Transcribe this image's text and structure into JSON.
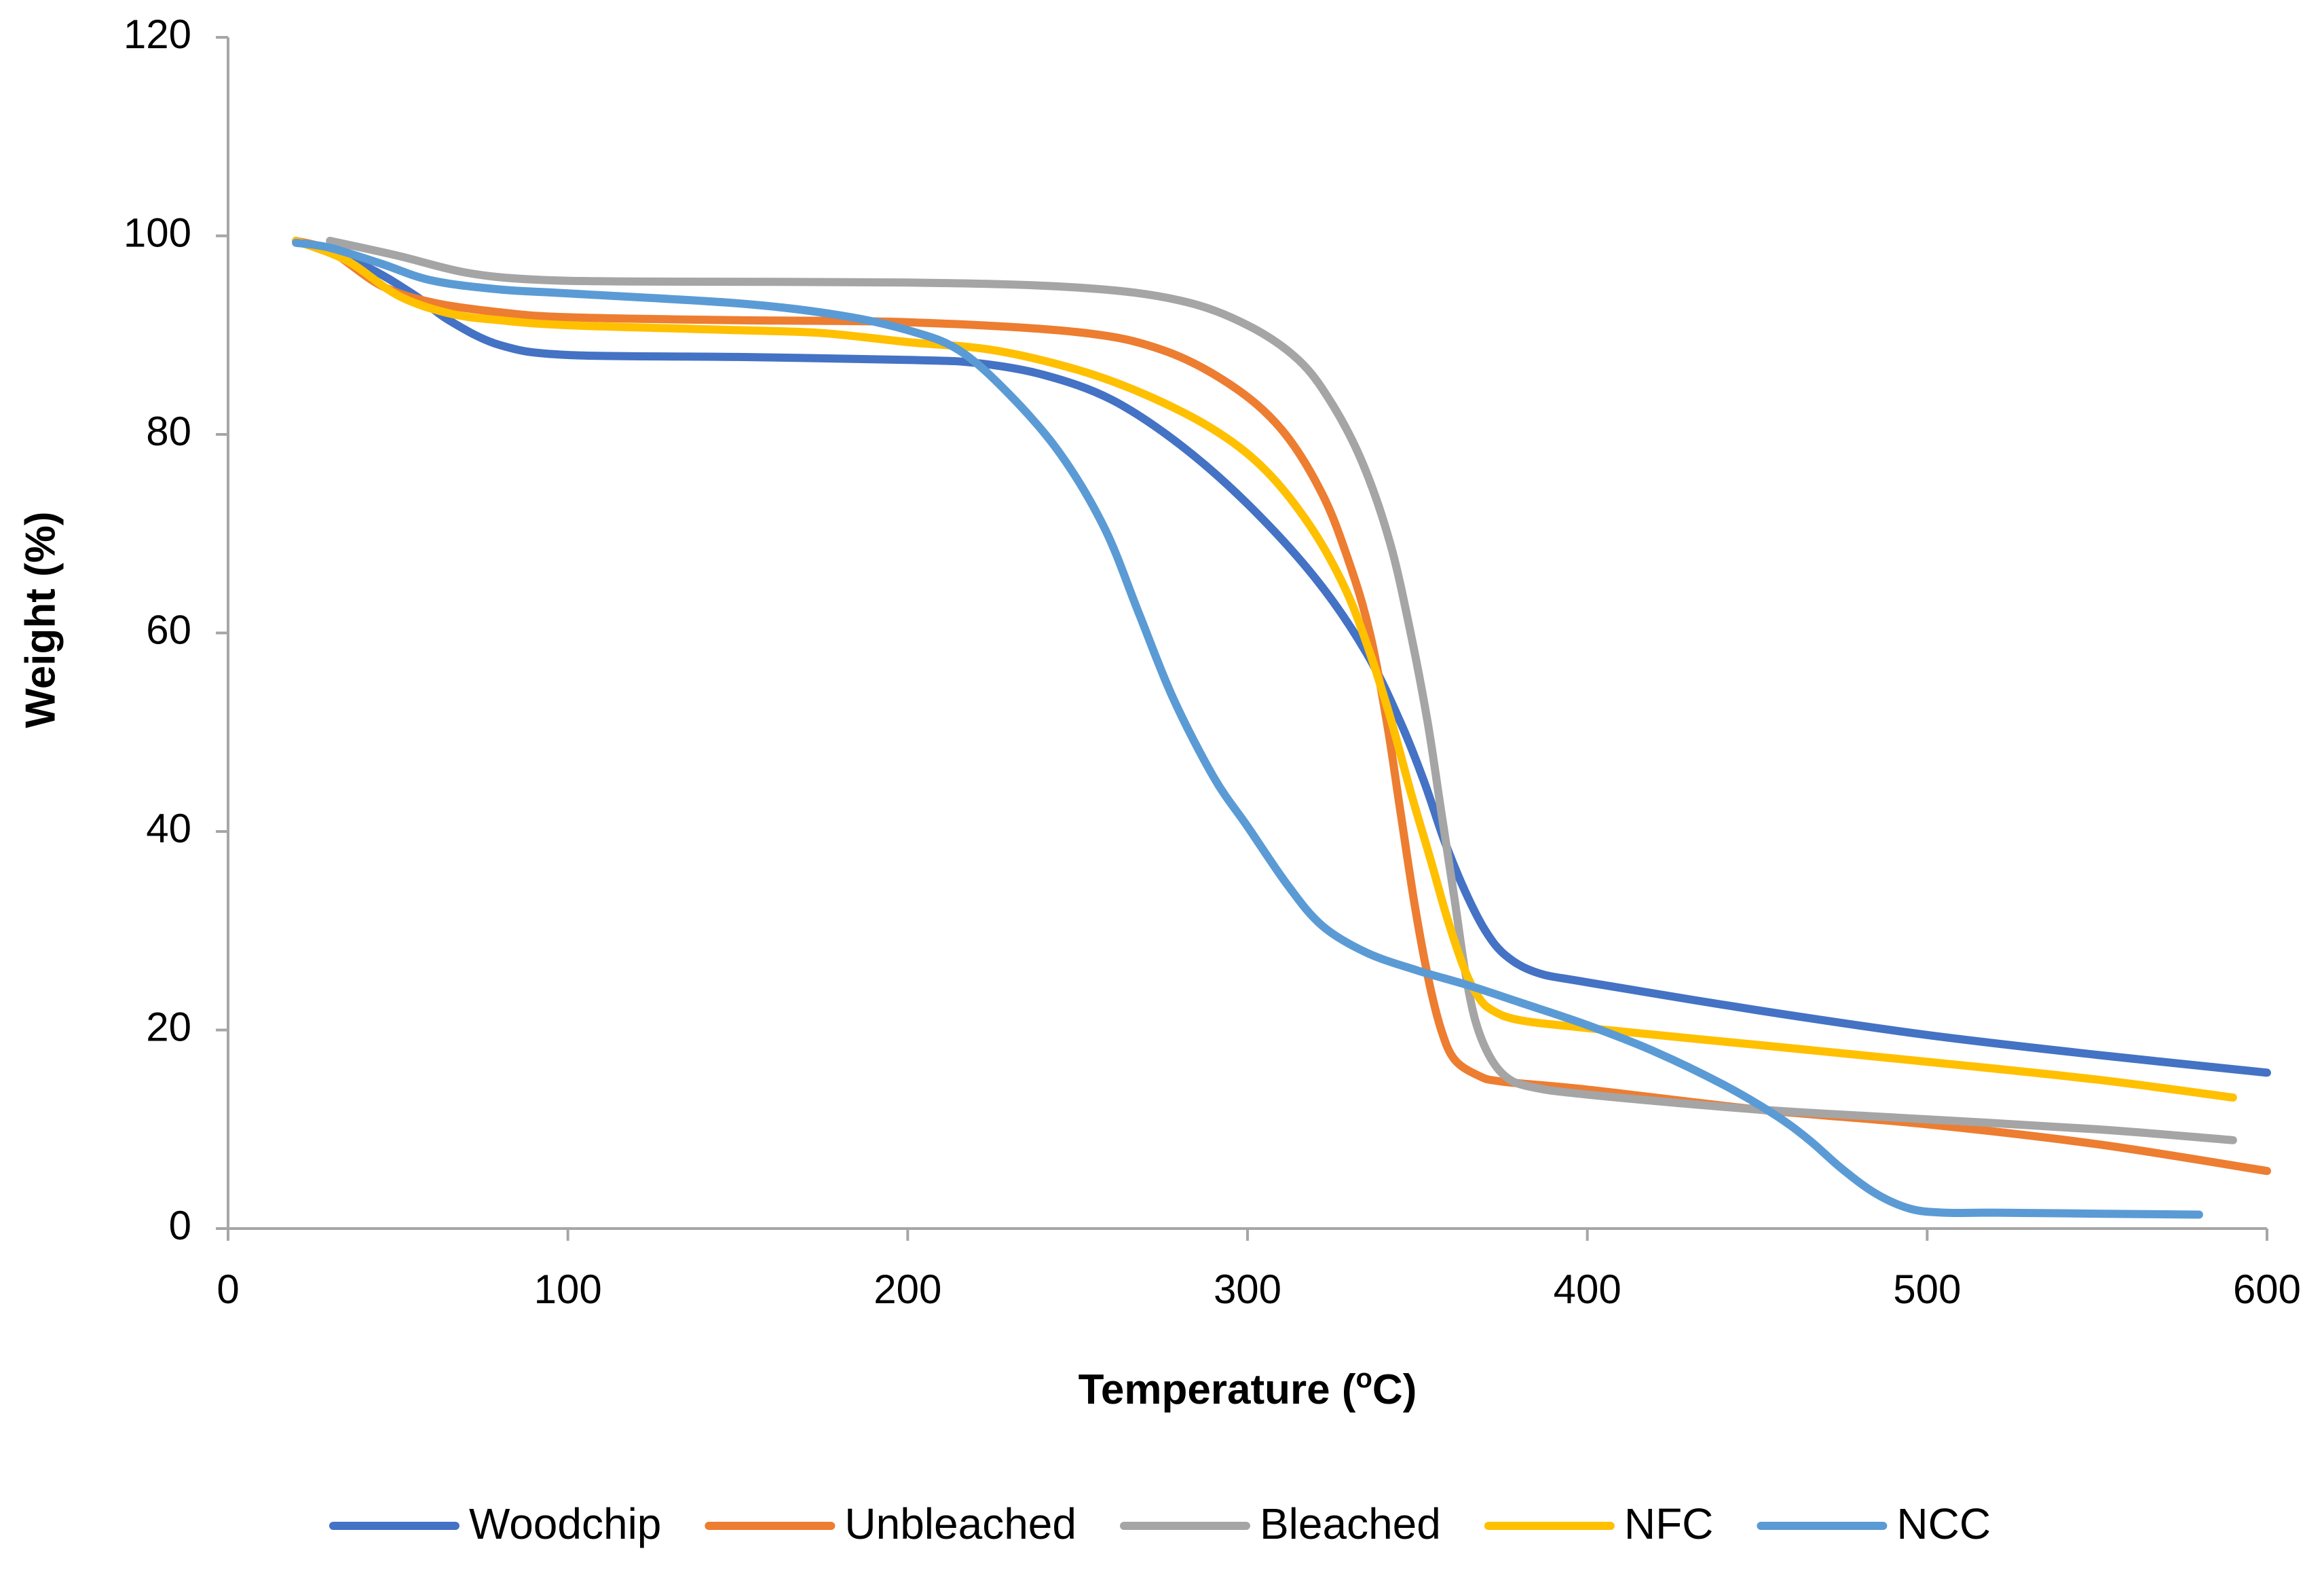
{
  "chart_data": {
    "type": "line",
    "title": "",
    "xlabel_main": "Temperature (",
    "xlabel_sup": "o",
    "xlabel_end": "C)",
    "ylabel": "Weight (%)",
    "xlim": [
      0,
      600
    ],
    "ylim": [
      0,
      120
    ],
    "xticks": [
      0,
      100,
      200,
      300,
      400,
      500,
      600
    ],
    "yticks": [
      0,
      20,
      40,
      60,
      80,
      100,
      120
    ],
    "grid": false,
    "legend_position": "bottom",
    "series": [
      {
        "name": "Woodchip",
        "color": "#4472C4",
        "points": [
          [
            20,
            99.5
          ],
          [
            40,
            97
          ],
          [
            55,
            94
          ],
          [
            65,
            91.5
          ],
          [
            80,
            89
          ],
          [
            100,
            88
          ],
          [
            150,
            87.8
          ],
          [
            200,
            87.5
          ],
          [
            220,
            87.2
          ],
          [
            240,
            86
          ],
          [
            260,
            83.5
          ],
          [
            280,
            79
          ],
          [
            300,
            73
          ],
          [
            320,
            65.5
          ],
          [
            335,
            58
          ],
          [
            345,
            51
          ],
          [
            352,
            45
          ],
          [
            358,
            39
          ],
          [
            364,
            34
          ],
          [
            370,
            30
          ],
          [
            376,
            27.5
          ],
          [
            385,
            25.8
          ],
          [
            400,
            24.8
          ],
          [
            450,
            22
          ],
          [
            500,
            19.5
          ],
          [
            550,
            17.5
          ],
          [
            600,
            15.7
          ]
        ]
      },
      {
        "name": "Unbleached",
        "color": "#ED7D31",
        "points": [
          [
            20,
            99.5
          ],
          [
            30,
            98.5
          ],
          [
            45,
            95
          ],
          [
            60,
            93.3
          ],
          [
            80,
            92.3
          ],
          [
            100,
            91.8
          ],
          [
            150,
            91.5
          ],
          [
            200,
            91.3
          ],
          [
            250,
            90.3
          ],
          [
            275,
            88.5
          ],
          [
            295,
            85
          ],
          [
            310,
            80.5
          ],
          [
            322,
            74
          ],
          [
            330,
            67
          ],
          [
            336,
            60
          ],
          [
            341,
            51
          ],
          [
            345,
            42
          ],
          [
            349,
            33
          ],
          [
            353,
            25.5
          ],
          [
            357,
            20
          ],
          [
            361,
            17
          ],
          [
            368,
            15.4
          ],
          [
            375,
            14.8
          ],
          [
            400,
            14
          ],
          [
            450,
            12
          ],
          [
            500,
            10.5
          ],
          [
            550,
            8.5
          ],
          [
            600,
            5.8
          ]
        ]
      },
      {
        "name": "Bleached",
        "color": "#A5A5A5",
        "points": [
          [
            30,
            99.5
          ],
          [
            50,
            98
          ],
          [
            70,
            96.3
          ],
          [
            90,
            95.6
          ],
          [
            120,
            95.4
          ],
          [
            200,
            95.3
          ],
          [
            250,
            94.8
          ],
          [
            280,
            93.5
          ],
          [
            300,
            91
          ],
          [
            315,
            87.5
          ],
          [
            325,
            83
          ],
          [
            334,
            77
          ],
          [
            342,
            69
          ],
          [
            348,
            60
          ],
          [
            353,
            51
          ],
          [
            357,
            42
          ],
          [
            361,
            33
          ],
          [
            364,
            26
          ],
          [
            367,
            21
          ],
          [
            371,
            17.5
          ],
          [
            376,
            15.3
          ],
          [
            383,
            14.3
          ],
          [
            400,
            13.5
          ],
          [
            450,
            12
          ],
          [
            500,
            11
          ],
          [
            550,
            10
          ],
          [
            590,
            8.9
          ]
        ]
      },
      {
        "name": "NFC",
        "color": "#FFC000",
        "points": [
          [
            20,
            99.5
          ],
          [
            35,
            97.5
          ],
          [
            50,
            94
          ],
          [
            65,
            92.2
          ],
          [
            80,
            91.5
          ],
          [
            100,
            91
          ],
          [
            150,
            90.5
          ],
          [
            175,
            90.2
          ],
          [
            200,
            89.3
          ],
          [
            225,
            88.5
          ],
          [
            250,
            86.5
          ],
          [
            270,
            84
          ],
          [
            290,
            80.5
          ],
          [
            305,
            76.5
          ],
          [
            318,
            71
          ],
          [
            328,
            65
          ],
          [
            335,
            59
          ],
          [
            342,
            51.5
          ],
          [
            348,
            44
          ],
          [
            354,
            37
          ],
          [
            359,
            31
          ],
          [
            364,
            26
          ],
          [
            368,
            23.3
          ],
          [
            372,
            22
          ],
          [
            380,
            21
          ],
          [
            400,
            20.2
          ],
          [
            450,
            18.5
          ],
          [
            500,
            16.8
          ],
          [
            550,
            15
          ],
          [
            590,
            13.2
          ]
        ]
      },
      {
        "name": "NCC",
        "color": "#5B9BD5",
        "points": [
          [
            20,
            99.3
          ],
          [
            30,
            98.8
          ],
          [
            45,
            97.2
          ],
          [
            60,
            95.5
          ],
          [
            80,
            94.6
          ],
          [
            100,
            94.2
          ],
          [
            150,
            93.2
          ],
          [
            180,
            92
          ],
          [
            200,
            90.5
          ],
          [
            215,
            88.5
          ],
          [
            230,
            84
          ],
          [
            245,
            78
          ],
          [
            258,
            70.5
          ],
          [
            268,
            62
          ],
          [
            278,
            53.5
          ],
          [
            290,
            45.5
          ],
          [
            300,
            40.5
          ],
          [
            312,
            34.5
          ],
          [
            322,
            30.5
          ],
          [
            335,
            27.8
          ],
          [
            350,
            26
          ],
          [
            365,
            24.5
          ],
          [
            380,
            22.8
          ],
          [
            400,
            20.5
          ],
          [
            420,
            17.8
          ],
          [
            440,
            14.5
          ],
          [
            455,
            11.5
          ],
          [
            465,
            9
          ],
          [
            475,
            6
          ],
          [
            485,
            3.5
          ],
          [
            495,
            2
          ],
          [
            505,
            1.6
          ],
          [
            520,
            1.6
          ],
          [
            550,
            1.5
          ],
          [
            580,
            1.4
          ]
        ]
      }
    ]
  }
}
